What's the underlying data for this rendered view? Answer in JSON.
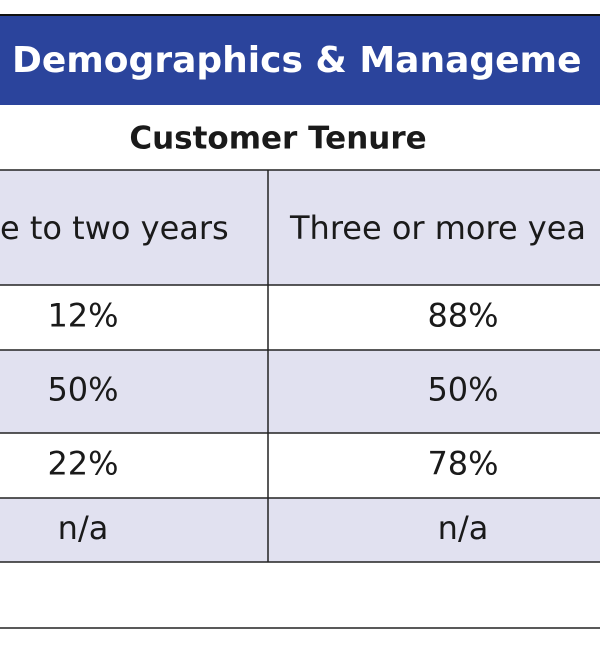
{
  "header": {
    "title": "Demographics & Manageme"
  },
  "table": {
    "caption": "Customer Tenure",
    "columns": [
      "e to two years",
      "Three or more yea"
    ],
    "rows": [
      [
        "12%",
        "88%"
      ],
      [
        "50%",
        "50%"
      ],
      [
        "22%",
        "78%"
      ],
      [
        "n/a",
        "n/a"
      ]
    ]
  }
}
